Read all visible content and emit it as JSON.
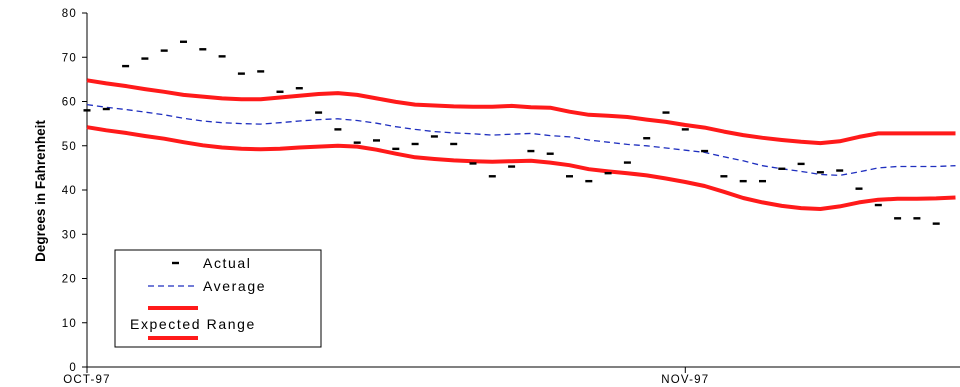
{
  "chart_data": {
    "type": "line",
    "ylabel": "Degrees in Fahrenheit",
    "xlabel": "",
    "ylim": [
      0,
      80
    ],
    "yticks": [
      "0",
      "10",
      "20",
      "30",
      "40",
      "50",
      "60",
      "70",
      "80"
    ],
    "xtick_labels": [
      {
        "label": "OCT-97",
        "day": 1
      },
      {
        "label": "NOV-97",
        "day": 32
      }
    ],
    "days": [
      1,
      2,
      3,
      4,
      5,
      6,
      7,
      8,
      9,
      10,
      11,
      12,
      13,
      14,
      15,
      16,
      17,
      18,
      19,
      20,
      21,
      22,
      23,
      24,
      25,
      26,
      27,
      28,
      29,
      30,
      31,
      32,
      33,
      34,
      35,
      36,
      37,
      38,
      39,
      40,
      41,
      42,
      43,
      44,
      45,
      46
    ],
    "series": [
      {
        "name": "Actual",
        "style": "dash-marker",
        "color": "#000000",
        "values": [
          58,
          58.3,
          68,
          69.7,
          71.5,
          73.5,
          71.8,
          70.2,
          66.3,
          66.8,
          62.2,
          63,
          57.5,
          53.7,
          50.7,
          51.2,
          49.3,
          50.4,
          52.1,
          50.4,
          46,
          43.1,
          45.3,
          48.8,
          48.2,
          43.1,
          42,
          43.8,
          46.2,
          51.7,
          57.5,
          53.7,
          48.8,
          43.1,
          42,
          42,
          44.8,
          45.9,
          44,
          44.4,
          40.3,
          36.6,
          33.6,
          33.6,
          32.4,
          null
        ]
      },
      {
        "name": "Average",
        "style": "dashed",
        "color": "#1f2fbf",
        "values": [
          59.3,
          58.7,
          58.2,
          57.6,
          57.0,
          56.2,
          55.6,
          55.2,
          55.0,
          54.9,
          55.2,
          55.6,
          55.9,
          56.1,
          55.7,
          55.1,
          54.3,
          53.7,
          53.2,
          52.9,
          52.7,
          52.4,
          52.6,
          52.8,
          52.3,
          52.0,
          51.3,
          50.8,
          50.3,
          50.0,
          49.5,
          49.0,
          48.5,
          47.5,
          46.6,
          45.5,
          44.8,
          44.2,
          43.5,
          43.3,
          44.1,
          45.0,
          45.3,
          45.3,
          45.3,
          45.5
        ]
      },
      {
        "name": "",
        "style": "solid",
        "color": "#ff1a1a",
        "values": [
          64.8,
          64.1,
          63.5,
          62.8,
          62.2,
          61.5,
          61.1,
          60.7,
          60.5,
          60.5,
          60.9,
          61.3,
          61.7,
          61.9,
          61.5,
          60.7,
          59.9,
          59.3,
          59.1,
          58.9,
          58.8,
          58.8,
          59.0,
          58.7,
          58.6,
          57.7,
          57.0,
          56.8,
          56.5,
          55.9,
          55.4,
          54.7,
          54.1,
          53.2,
          52.4,
          51.8,
          51.3,
          50.9,
          50.6,
          51.0,
          52.0,
          52.8,
          52.8,
          52.8,
          52.8,
          52.8
        ]
      },
      {
        "name": "Expected Range",
        "style": "solid",
        "color": "#ff1a1a",
        "values": [
          54.2,
          53.5,
          52.9,
          52.2,
          51.6,
          50.8,
          50.1,
          49.6,
          49.3,
          49.2,
          49.3,
          49.6,
          49.8,
          50.0,
          49.8,
          49.1,
          48.2,
          47.4,
          47.0,
          46.7,
          46.5,
          46.4,
          46.5,
          46.6,
          46.2,
          45.6,
          44.7,
          44.2,
          43.8,
          43.3,
          42.6,
          41.8,
          40.9,
          39.6,
          38.2,
          37.2,
          36.4,
          35.9,
          35.7,
          36.3,
          37.2,
          37.8,
          38.0,
          38.0,
          38.1,
          38.3
        ]
      }
    ],
    "legend": {
      "position": "bottom-left",
      "entries": [
        {
          "label": "Actual",
          "style": "dash-marker",
          "color": "#000000"
        },
        {
          "label": "Average",
          "style": "dashed",
          "color": "#1f2fbf"
        },
        {
          "label": "Expected Range",
          "style": "solid-pair",
          "color": "#ff1a1a"
        }
      ]
    },
    "grid": false
  }
}
